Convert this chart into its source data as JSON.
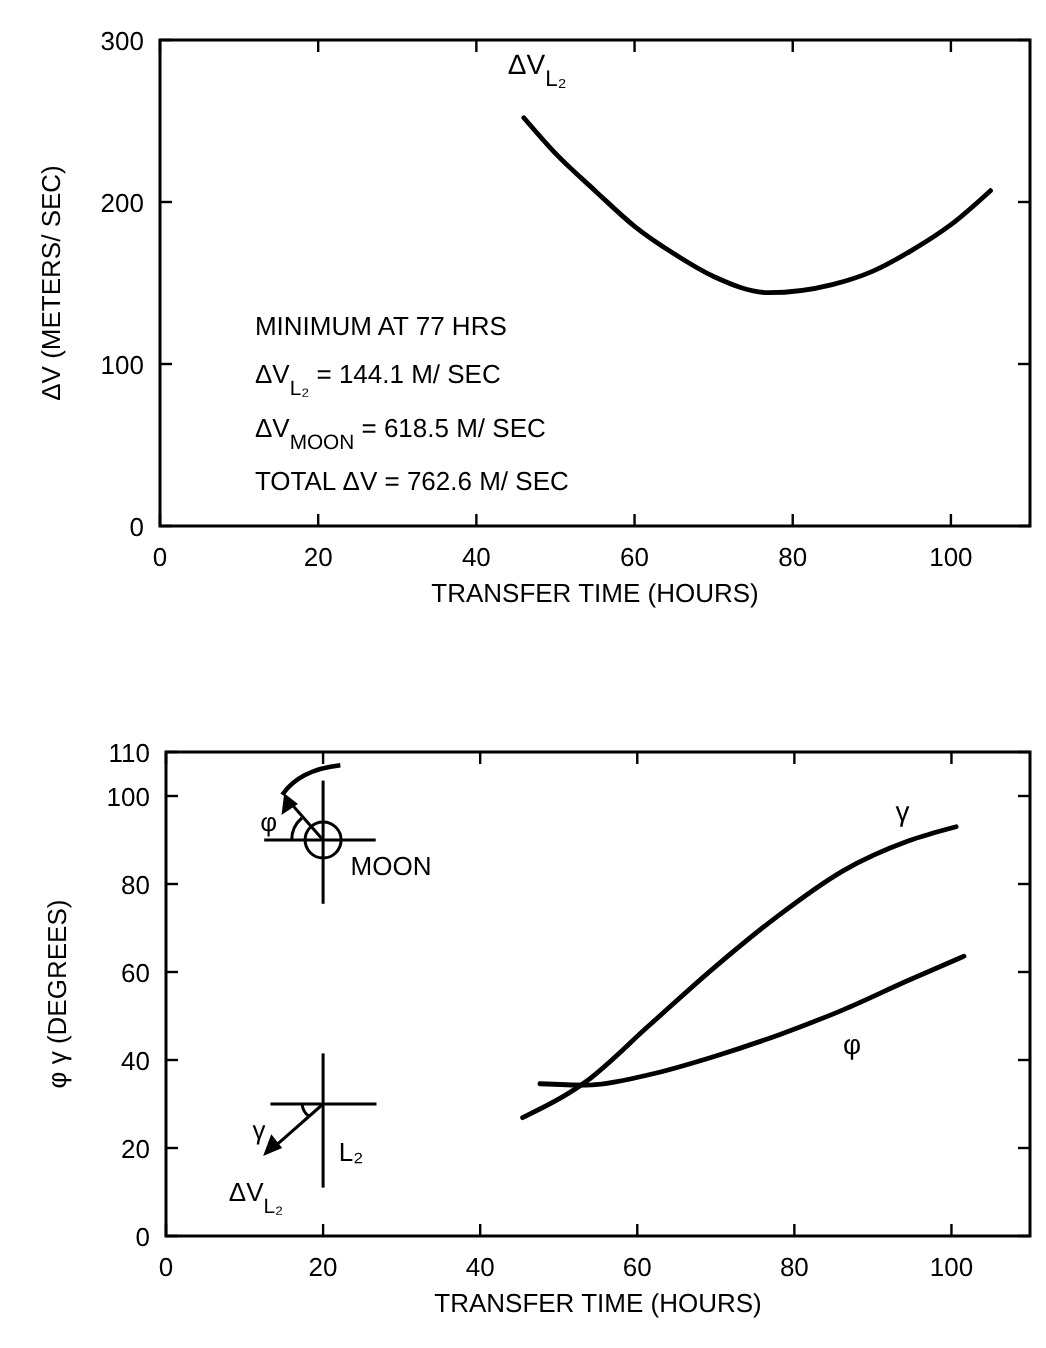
{
  "chart_data": [
    {
      "type": "line",
      "xlabel": "TRANSFER TIME  (HOURS)",
      "ylabel": "ΔV  (METERS/ SEC)",
      "xlim": [
        0,
        110
      ],
      "ylim": [
        0,
        300
      ],
      "xticks": [
        0,
        20,
        40,
        60,
        80,
        100
      ],
      "yticks": [
        0,
        100,
        200,
        300
      ],
      "series": [
        {
          "name": "ΔV$_{L₂}$",
          "color": "#000000",
          "x": [
            46,
            50,
            55,
            60,
            65,
            70,
            77,
            85,
            90,
            95,
            100,
            105
          ],
          "values": [
            252,
            230,
            207,
            185,
            168,
            154,
            144,
            149,
            157,
            170,
            186,
            207
          ]
        }
      ],
      "annotations": [
        "MINIMUM AT 77 HRS",
        "ΔV$_{L₂}$  =  144.1 M/ SEC",
        "ΔV$_{MOON}$  =  618.5 M/ SEC",
        "TOTAL ΔV  =  762.6 M/ SEC"
      ]
    },
    {
      "type": "line",
      "xlabel": "TRANSFER TIME (HOURS)",
      "ylabel": "φ     γ (DEGREES)",
      "xlim": [
        0,
        110
      ],
      "ylim": [
        0,
        110
      ],
      "xticks": [
        0,
        20,
        40,
        60,
        80,
        100
      ],
      "yticks": [
        0,
        20,
        40,
        60,
        80,
        100,
        110
      ],
      "series": [
        {
          "name": "γ",
          "color": "#000000",
          "x": [
            45.4,
            53.4,
            61.6,
            69.8,
            77.8,
            86.2,
            94.4,
            100.6
          ],
          "values": [
            26.9,
            35,
            48,
            61,
            72.6,
            83,
            89.7,
            93
          ]
        },
        {
          "name": "φ",
          "color": "#000000",
          "x": [
            47.6,
            53.4,
            61.6,
            69.8,
            78,
            86.2,
            94.4,
            101.6
          ],
          "values": [
            34.6,
            34.3,
            36.7,
            40.8,
            45.7,
            51.4,
            58,
            63.6
          ]
        }
      ],
      "annotations": [
        "φ",
        "MOON",
        "γ",
        "ΔV$_{L₂}$",
        "L₂"
      ]
    }
  ]
}
